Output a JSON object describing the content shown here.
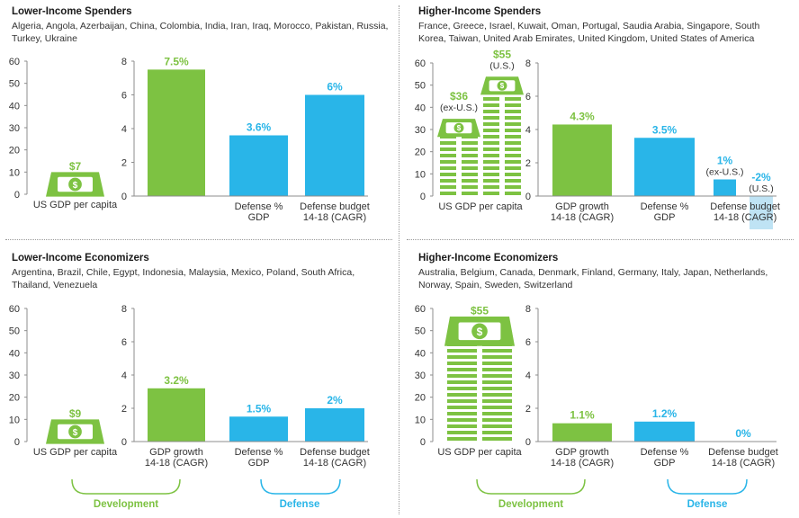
{
  "colors": {
    "green": "#7dc242",
    "blue": "#29b5e8",
    "blue_light": "#bfe3f4",
    "axis": "#8c8c8c",
    "text": "#333333"
  },
  "quadrants": [
    {
      "id": "lower-income-spenders",
      "title": "Lower-Income Spenders",
      "countries": "Algeria, Angola, Azerbaijan, China, Colombia, India, Iran, Iraq, Morocco, Pakistan, Russia, Turkey, Ukraine",
      "chart_data": [
        {
          "type": "pictograph",
          "xlabel": "US GDP per capita",
          "ylim": [
            0,
            60
          ],
          "yticks": [
            "0",
            "10",
            "20",
            "30",
            "40",
            "50",
            "60"
          ],
          "stacks": [
            {
              "value": 7,
              "label": "$7",
              "sublabel": ""
            }
          ]
        },
        {
          "type": "bar",
          "ylim": [
            0,
            8
          ],
          "yticks": [
            "0",
            "2",
            "4",
            "6",
            "8"
          ],
          "categories": [
            "",
            "Defense %\nGDP",
            "Defense budget\n14-18 (CAGR)"
          ],
          "values": [
            7.5,
            3.6,
            6
          ],
          "labels": [
            "7.5%",
            "3.6%",
            "6%"
          ],
          "colors": [
            "green",
            "blue",
            "blue"
          ]
        }
      ]
    },
    {
      "id": "higher-income-spenders",
      "title": "Higher-Income Spenders",
      "countries": "France, Greece, Israel, Kuwait, Oman, Portugal, Saudia Arabia, Singapore, South Korea, Taiwan, United Arab Emirates, United Kingdom, United States of America",
      "chart_data": [
        {
          "type": "pictograph",
          "xlabel": "US GDP per capita",
          "ylim": [
            0,
            60
          ],
          "yticks": [
            "0",
            "10",
            "20",
            "30",
            "40",
            "50",
            "60"
          ],
          "stacks": [
            {
              "value": 36,
              "label": "$36",
              "sublabel": "(ex-U.S.)"
            },
            {
              "value": 55,
              "label": "$55",
              "sublabel": "(U.S.)"
            }
          ]
        },
        {
          "type": "bar",
          "ylim": [
            0,
            8
          ],
          "yticks": [
            "0",
            "2",
            "4",
            "6",
            "8"
          ],
          "categories": [
            "GDP growth\n14-18 (CAGR)",
            "Defense %\nGDP",
            "Defense budget\n14-18 (CAGR)"
          ],
          "values": [
            4.3,
            3.5,
            [
              1,
              -2
            ]
          ],
          "labels": [
            "4.3%",
            "3.5%",
            [
              "1%",
              "-2%"
            ]
          ],
          "sublabels": [
            "",
            "",
            [
              "(ex-U.S.)",
              "(U.S.)"
            ]
          ],
          "colors": [
            "green",
            "blue",
            "blue"
          ]
        }
      ],
      "groups": []
    },
    {
      "id": "lower-income-economizers",
      "title": "Lower-Income Economizers",
      "countries": "Argentina, Brazil, Chile, Egypt, Indonesia, Malaysia, Mexico, Poland, South Africa, Thailand, Venezuela",
      "chart_data": [
        {
          "type": "pictograph",
          "xlabel": "US GDP per capita",
          "ylim": [
            0,
            60
          ],
          "yticks": [
            "0",
            "10",
            "20",
            "30",
            "40",
            "50",
            "60"
          ],
          "stacks": [
            {
              "value": 9,
              "label": "$9",
              "sublabel": ""
            }
          ]
        },
        {
          "type": "bar",
          "ylim": [
            0,
            8
          ],
          "yticks": [
            "0",
            "2",
            "4",
            "6",
            "8"
          ],
          "categories": [
            "GDP growth\n14-18 (CAGR)",
            "Defense %\nGDP",
            "Defense budget\n14-18 (CAGR)"
          ],
          "values": [
            3.2,
            1.5,
            2
          ],
          "labels": [
            "3.2%",
            "1.5%",
            "2%"
          ],
          "colors": [
            "green",
            "blue",
            "blue"
          ]
        }
      ],
      "groups": [
        "Development",
        "Defense"
      ]
    },
    {
      "id": "higher-income-economizers",
      "title": "Higher-Income Economizers",
      "countries": "Australia, Belgium, Canada, Denmark, Finland, Germany, Italy, Japan, Netherlands, Norway, Spain, Sweden, Switzerland",
      "chart_data": [
        {
          "type": "pictograph",
          "xlabel": "US GDP per capita",
          "ylim": [
            0,
            60
          ],
          "yticks": [
            "0",
            "10",
            "20",
            "30",
            "40",
            "50",
            "60"
          ],
          "stacks": [
            {
              "value": 55,
              "label": "$55",
              "sublabel": ""
            }
          ]
        },
        {
          "type": "bar",
          "ylim": [
            0,
            8
          ],
          "yticks": [
            "0",
            "2",
            "4",
            "6",
            "8"
          ],
          "categories": [
            "GDP growth\n14-18 (CAGR)",
            "Defense %\nGDP",
            "Defense budget\n14-18 (CAGR)"
          ],
          "values": [
            1.1,
            1.2,
            0
          ],
          "labels": [
            "1.1%",
            "1.2%",
            "0%"
          ],
          "colors": [
            "green",
            "blue",
            "blue"
          ]
        }
      ],
      "groups": [
        "Development",
        "Defense"
      ]
    }
  ]
}
